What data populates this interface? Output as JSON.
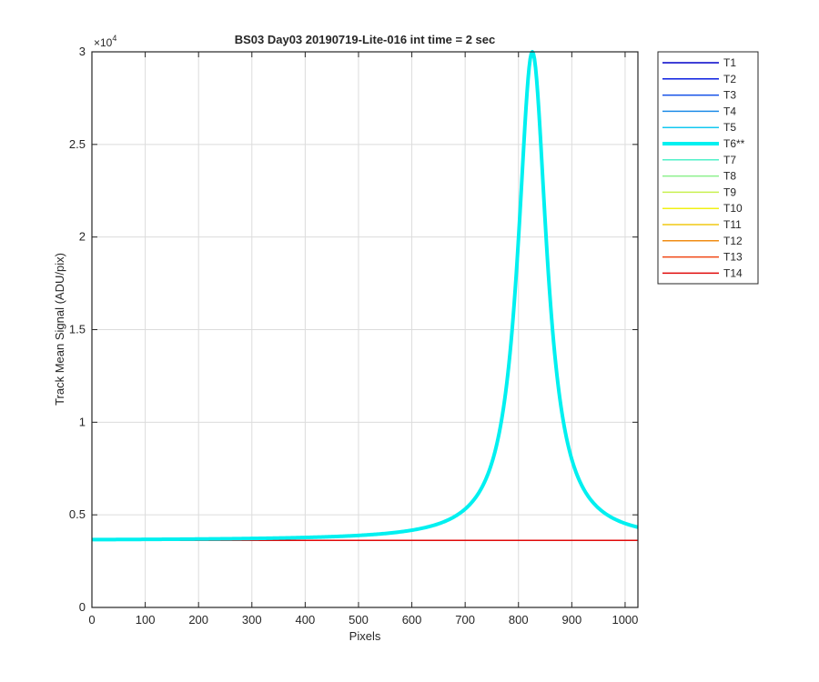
{
  "chart_data": {
    "type": "line",
    "title": "BS03 Day03 20190719-Lite-016 int time = 2 sec",
    "xlabel": "Pixels",
    "ylabel": "Track Mean Signal (ADU/pix)",
    "y_exponent_label": "×10",
    "y_exponent_power": "4",
    "y_scale": 10000,
    "xlim": [
      0,
      1024
    ],
    "ylim": [
      0,
      30000
    ],
    "x_ticks": [
      0,
      100,
      200,
      300,
      400,
      500,
      600,
      700,
      800,
      900,
      1000
    ],
    "x_tick_labels": [
      "0",
      "100",
      "200",
      "300",
      "400",
      "500",
      "600",
      "700",
      "800",
      "900",
      "1000"
    ],
    "y_ticks": [
      0,
      5000,
      10000,
      15000,
      20000,
      25000,
      30000
    ],
    "y_tick_labels": [
      "0",
      "0.5",
      "1",
      "1.5",
      "2",
      "2.5",
      "3"
    ],
    "grid": true,
    "legend_position": "outside-right-top",
    "series": [
      {
        "name": "T1",
        "color": "#0000c8",
        "highlight": false,
        "baseline": 3620
      },
      {
        "name": "T2",
        "color": "#0a1ee0",
        "highlight": false,
        "baseline": 3620
      },
      {
        "name": "T3",
        "color": "#1450e8",
        "highlight": false,
        "baseline": 3620
      },
      {
        "name": "T4",
        "color": "#1e8ce8",
        "highlight": false,
        "baseline": 3620
      },
      {
        "name": "T5",
        "color": "#14c8f0",
        "highlight": false,
        "baseline": 3620
      },
      {
        "name": "T6**",
        "color": "#00f0f0",
        "highlight": true,
        "baseline": 3620,
        "peak": {
          "center": 826,
          "height": 30000,
          "width": 33
        }
      },
      {
        "name": "T7",
        "color": "#50f0c8",
        "highlight": false,
        "baseline": 3620
      },
      {
        "name": "T8",
        "color": "#8cf08c",
        "highlight": false,
        "baseline": 3620
      },
      {
        "name": "T9",
        "color": "#c8f050",
        "highlight": false,
        "baseline": 3620
      },
      {
        "name": "T10",
        "color": "#f0f014",
        "highlight": false,
        "baseline": 3620
      },
      {
        "name": "T11",
        "color": "#f0c814",
        "highlight": false,
        "baseline": 3620
      },
      {
        "name": "T12",
        "color": "#f08c14",
        "highlight": false,
        "baseline": 3620
      },
      {
        "name": "T13",
        "color": "#f04614",
        "highlight": false,
        "baseline": 3620
      },
      {
        "name": "T14",
        "color": "#e00a0a",
        "highlight": false,
        "baseline": 3620
      }
    ]
  }
}
